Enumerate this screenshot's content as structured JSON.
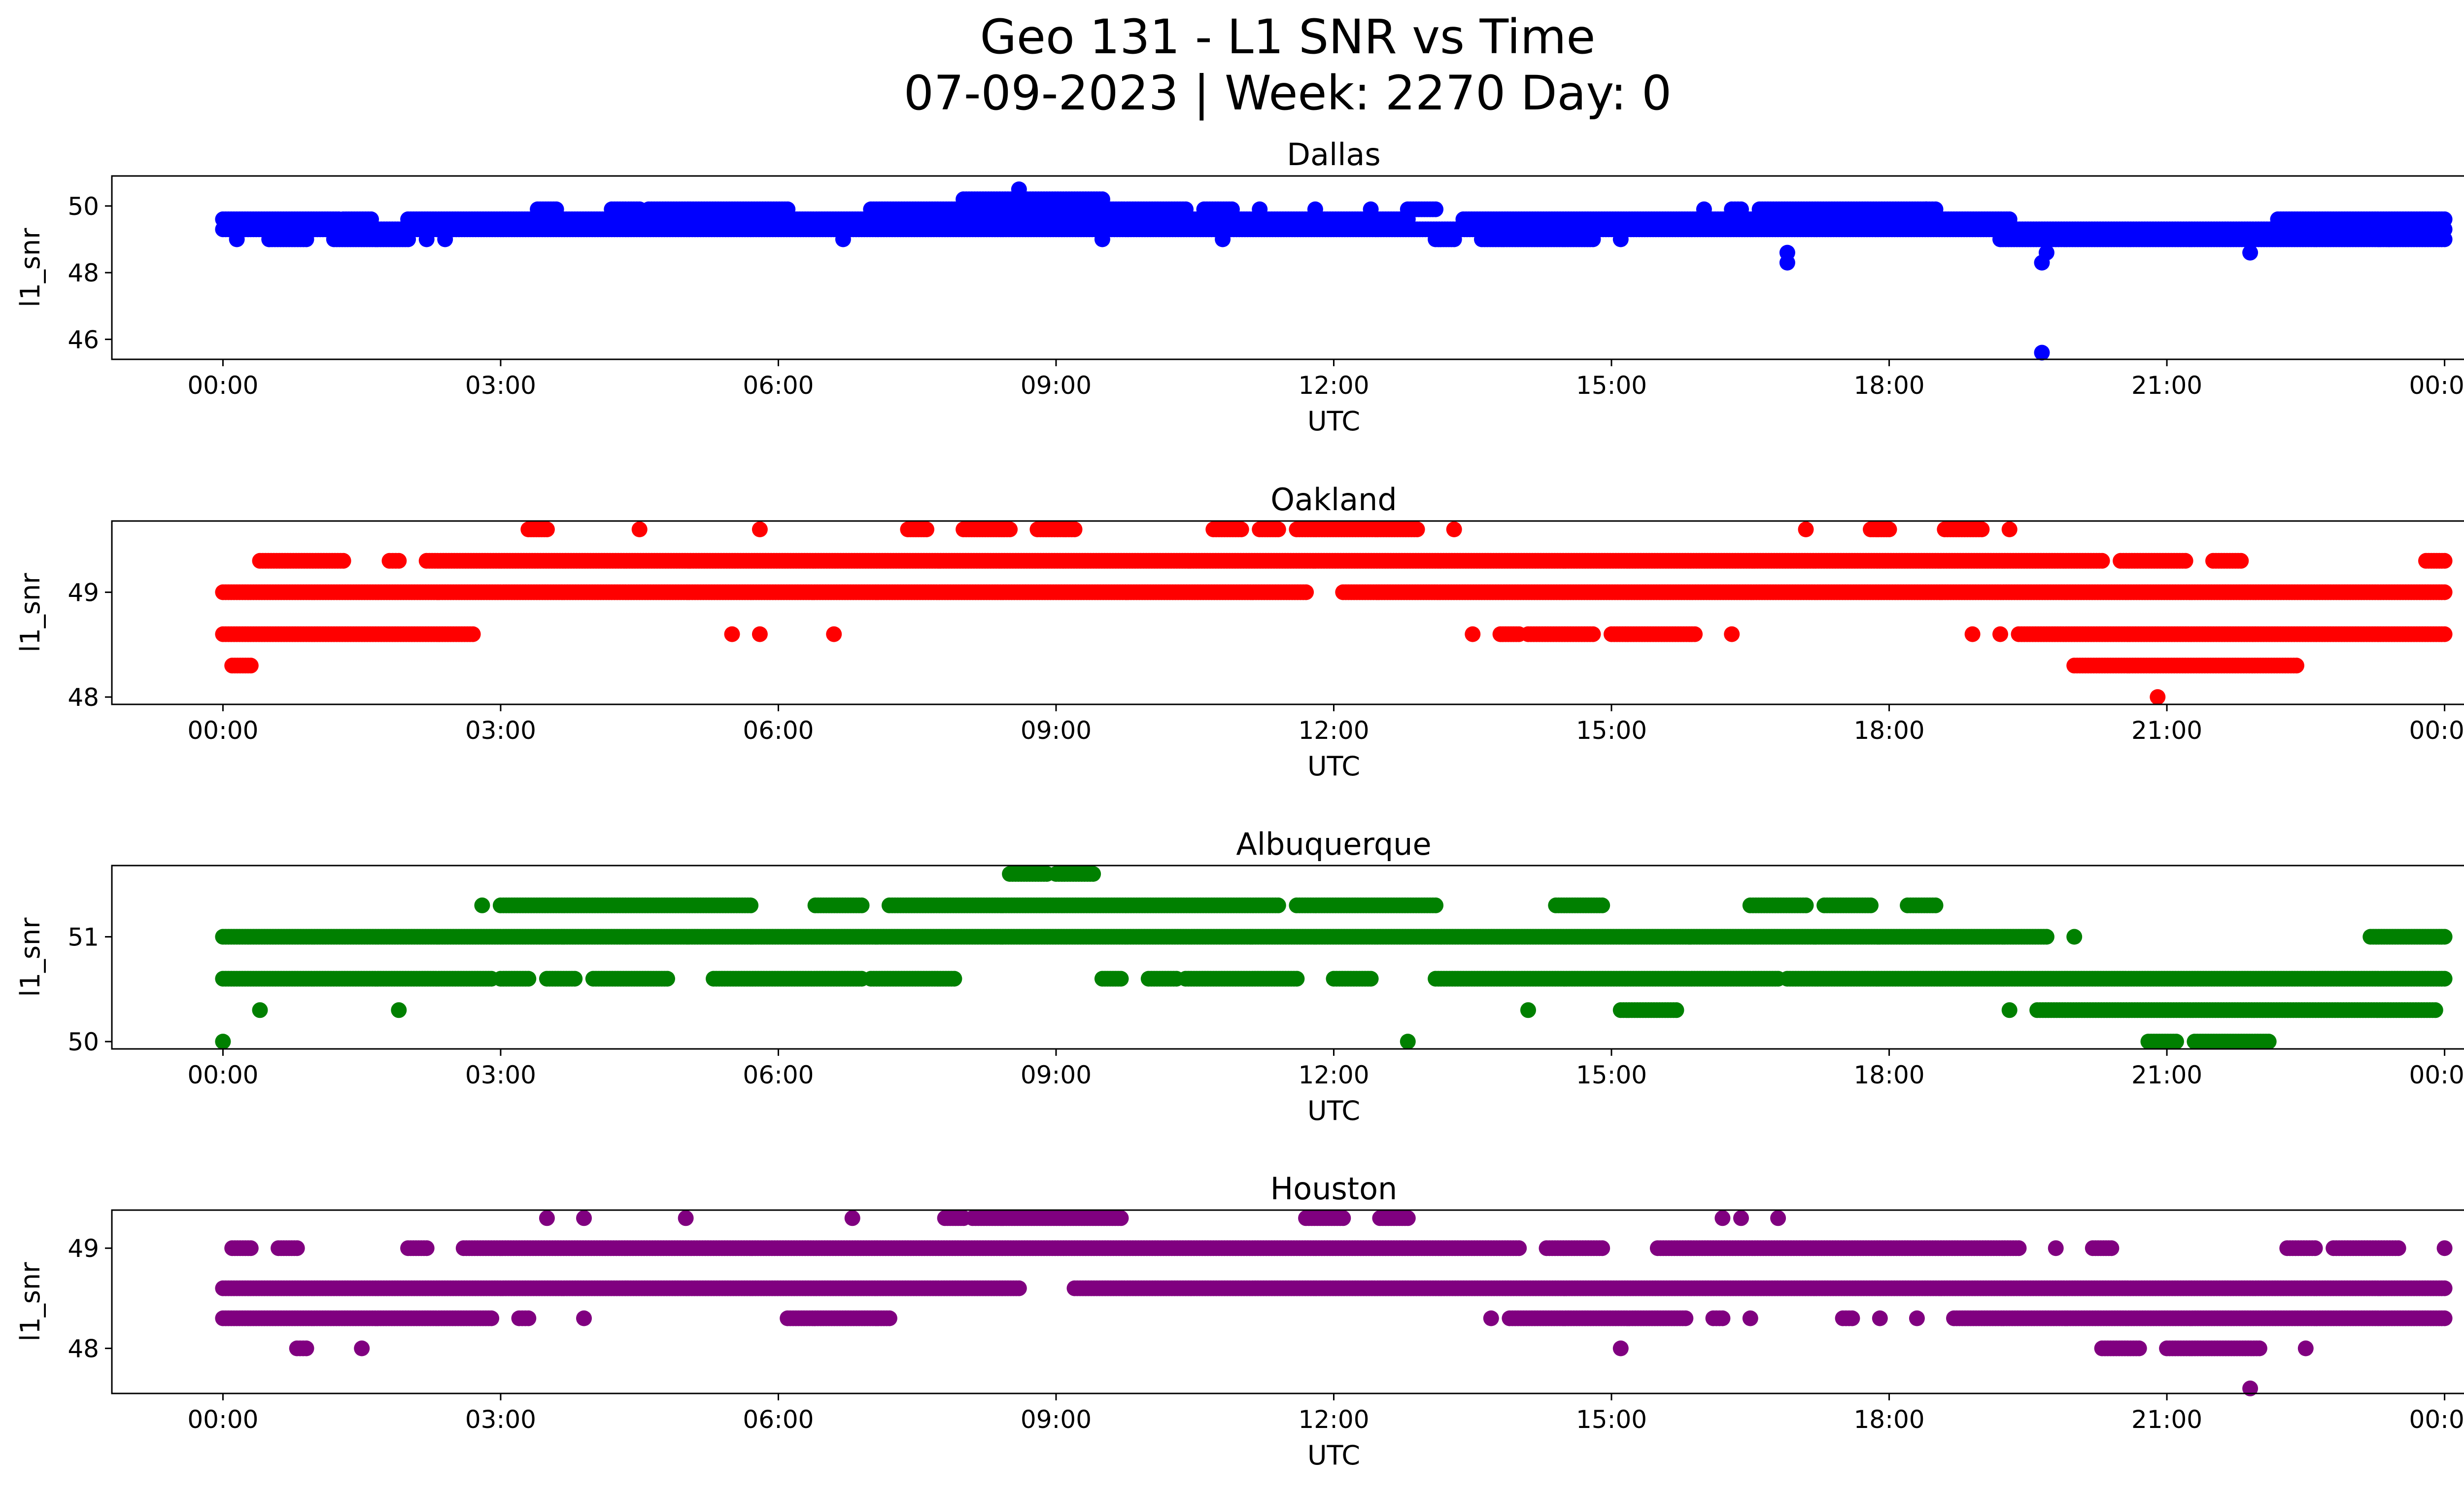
{
  "figure": {
    "title_line1": "Geo 131 - L1 SNR vs Time",
    "title_line2": "07-09-2023 | Week: 2270 Day: 0"
  },
  "chart_data": [
    {
      "type": "scatter",
      "title": "Dallas",
      "xlabel": "UTC",
      "ylabel": "l1_snr",
      "color": "#0000ff",
      "x_ticks": [
        "00:00",
        "03:00",
        "06:00",
        "09:00",
        "12:00",
        "15:00",
        "18:00",
        "21:00",
        "00:00"
      ],
      "xlim_hours": [
        -1.2,
        25.2
      ],
      "ylim": [
        45.4,
        50.9
      ],
      "y_ticks": [
        46,
        48,
        50
      ],
      "y_tick_labels": [
        "46",
        "48",
        "50"
      ],
      "levels": [
        {
          "y": 49.3,
          "runs": [
            [
              0,
              24
            ]
          ]
        },
        {
          "y": 49.6,
          "runs": [
            [
              0,
              1.25
            ],
            [
              1.3,
              1.6
            ],
            [
              2.0,
              12.8
            ],
            [
              13.4,
              16.0
            ],
            [
              16.0,
              17.8
            ],
            [
              17.8,
              19.3
            ],
            [
              22.2,
              24
            ]
          ]
        },
        {
          "y": 49.0,
          "runs": [
            [
              0.15,
              0.15
            ],
            [
              0.5,
              0.5
            ],
            [
              0.5,
              0.9
            ],
            [
              1.2,
              2.0
            ],
            [
              2.2,
              2.2
            ],
            [
              2.4,
              2.4
            ],
            [
              6.7,
              6.7
            ],
            [
              9.5,
              9.5
            ],
            [
              10.8,
              10.8
            ],
            [
              13.1,
              13.3
            ],
            [
              13.6,
              14.8
            ],
            [
              15.1,
              15.1
            ],
            [
              19.2,
              24
            ],
            [
              23.4,
              23.4
            ]
          ]
        },
        {
          "y": 49.9,
          "runs": [
            [
              3.4,
              3.6
            ],
            [
              4.2,
              4.5
            ],
            [
              4.6,
              6.1
            ],
            [
              7.0,
              10.4
            ],
            [
              10.6,
              10.9
            ],
            [
              11.2,
              11.2
            ],
            [
              11.8,
              11.8
            ],
            [
              12.4,
              12.4
            ],
            [
              12.8,
              13.1
            ],
            [
              16.0,
              16.0
            ],
            [
              16.3,
              16.4
            ],
            [
              16.6,
              18.4
            ],
            [
              18.4,
              18.5
            ]
          ]
        },
        {
          "y": 50.2,
          "runs": [
            [
              8.0,
              9.5
            ]
          ]
        },
        {
          "y": 48.6,
          "runs": [
            [
              16.9,
              16.9
            ],
            [
              19.7,
              19.7
            ],
            [
              21.9,
              21.9
            ]
          ]
        }
      ],
      "points": [
        {
          "x": 8.6,
          "y": 50.5
        },
        {
          "x": 16.9,
          "y": 48.3
        },
        {
          "x": 19.65,
          "y": 48.3
        },
        {
          "x": 19.65,
          "y": 45.6
        }
      ]
    },
    {
      "type": "scatter",
      "title": "Oakland",
      "xlabel": "UTC",
      "ylabel": "l1_snr",
      "color": "#ff0000",
      "x_ticks": [
        "00:00",
        "03:00",
        "06:00",
        "09:00",
        "12:00",
        "15:00",
        "18:00",
        "21:00",
        "00:00"
      ],
      "xlim_hours": [
        -1.2,
        25.2
      ],
      "ylim": [
        47.93,
        49.68
      ],
      "y_ticks": [
        48,
        49
      ],
      "y_tick_labels": [
        "48",
        "49"
      ],
      "levels": [
        {
          "y": 49.0,
          "runs": [
            [
              0,
              11.7
            ],
            [
              12.1,
              24
            ]
          ]
        },
        {
          "y": 48.6,
          "runs": [
            [
              0,
              2.7
            ],
            [
              19.4,
              24
            ]
          ]
        },
        {
          "y": 49.3,
          "runs": [
            [
              0.4,
              1.3
            ],
            [
              1.8,
              1.9
            ],
            [
              2.2,
              20.3
            ],
            [
              20.5,
              21.2
            ],
            [
              21.5,
              21.8
            ],
            [
              23.8,
              24
            ]
          ]
        },
        {
          "y": 49.6,
          "runs": [
            [
              3.3,
              3.5
            ],
            [
              4.5,
              4.5
            ],
            [
              5.8,
              5.8
            ],
            [
              7.4,
              7.6
            ],
            [
              8.0,
              8.5
            ],
            [
              8.8,
              9.2
            ],
            [
              10.7,
              11.0
            ],
            [
              11.2,
              11.4
            ],
            [
              11.6,
              12.9
            ],
            [
              13.3,
              13.3
            ],
            [
              17.1,
              17.1
            ],
            [
              17.8,
              18.0
            ],
            [
              18.6,
              19.0
            ],
            [
              19.3,
              19.3
            ]
          ]
        },
        {
          "y": 48.3,
          "runs": [
            [
              0.1,
              0.3
            ],
            [
              20.0,
              22.4
            ]
          ]
        },
        {
          "y": 48.6,
          "runs": [
            [
              5.5,
              5.5
            ],
            [
              5.8,
              5.8
            ],
            [
              6.6,
              6.6
            ],
            [
              13.5,
              13.5
            ],
            [
              13.8,
              14.0
            ],
            [
              14.1,
              14.8
            ],
            [
              15.0,
              15.9
            ],
            [
              16.3,
              16.3
            ],
            [
              18.9,
              18.9
            ],
            [
              19.2,
              19.2
            ]
          ]
        }
      ],
      "points": [
        {
          "x": 20.9,
          "y": 48.0
        }
      ]
    },
    {
      "type": "scatter",
      "title": "Albuquerque",
      "xlabel": "UTC",
      "ylabel": "l1_snr",
      "color": "#008000",
      "x_ticks": [
        "00:00",
        "03:00",
        "06:00",
        "09:00",
        "12:00",
        "15:00",
        "18:00",
        "21:00",
        "00:00"
      ],
      "xlim_hours": [
        -1.2,
        25.2
      ],
      "ylim": [
        49.93,
        51.68
      ],
      "y_ticks": [
        50,
        51
      ],
      "y_tick_labels": [
        "50",
        "51"
      ],
      "levels": [
        {
          "y": 51.0,
          "runs": [
            [
              0,
              19.7
            ],
            [
              20.0,
              20.0
            ],
            [
              23.2,
              24
            ]
          ]
        },
        {
          "y": 50.6,
          "runs": [
            [
              0,
              2.9
            ],
            [
              3.0,
              3.3
            ],
            [
              3.5,
              3.8
            ],
            [
              4.0,
              4.8
            ],
            [
              5.3,
              6.9
            ],
            [
              7.0,
              7.9
            ],
            [
              9.5,
              9.7
            ],
            [
              10.0,
              10.3
            ],
            [
              10.4,
              11.6
            ],
            [
              12.0,
              12.4
            ],
            [
              13.1,
              16.8
            ],
            [
              16.9,
              24
            ]
          ]
        },
        {
          "y": 51.3,
          "runs": [
            [
              2.8,
              2.8
            ],
            [
              3.0,
              5.7
            ],
            [
              6.4,
              6.9
            ],
            [
              7.2,
              11.4
            ],
            [
              11.6,
              13.1
            ],
            [
              14.4,
              14.9
            ],
            [
              16.5,
              17.1
            ],
            [
              17.3,
              17.8
            ],
            [
              18.2,
              18.5
            ]
          ]
        },
        {
          "y": 51.6,
          "runs": [
            [
              8.5,
              8.9
            ],
            [
              9.0,
              9.4
            ]
          ]
        },
        {
          "y": 50.3,
          "runs": [
            [
              0.4,
              0.4
            ],
            [
              1.9,
              1.9
            ],
            [
              14.1,
              14.1
            ],
            [
              15.1,
              15.7
            ],
            [
              19.3,
              19.3
            ],
            [
              19.6,
              23.9
            ]
          ]
        },
        {
          "y": 50.0,
          "runs": [
            [
              20.8,
              21.1
            ],
            [
              21.3,
              22.1
            ]
          ]
        }
      ],
      "points": [
        {
          "x": 0.0,
          "y": 50.0
        },
        {
          "x": 12.8,
          "y": 50.0
        }
      ]
    },
    {
      "type": "scatter",
      "title": "Houston",
      "xlabel": "UTC",
      "ylabel": "l1_snr",
      "color": "#800080",
      "x_ticks": [
        "00:00",
        "03:00",
        "06:00",
        "09:00",
        "12:00",
        "15:00",
        "18:00",
        "21:00",
        "00:00"
      ],
      "xlim_hours": [
        -1.2,
        25.2
      ],
      "ylim": [
        47.55,
        49.38
      ],
      "y_ticks": [
        48,
        49
      ],
      "y_tick_labels": [
        "48",
        "49"
      ],
      "levels": [
        {
          "y": 48.6,
          "runs": [
            [
              0,
              8.6
            ],
            [
              9.2,
              24
            ]
          ]
        },
        {
          "y": 48.3,
          "runs": [
            [
              0,
              2.9
            ],
            [
              3.2,
              3.3
            ],
            [
              3.9,
              3.9
            ],
            [
              6.1,
              7.2
            ],
            [
              13.7,
              13.7
            ],
            [
              13.9,
              15.8
            ],
            [
              16.1,
              16.2
            ],
            [
              16.5,
              16.5
            ],
            [
              17.5,
              17.6
            ],
            [
              17.9,
              17.9
            ],
            [
              18.3,
              18.3
            ],
            [
              18.7,
              24
            ]
          ]
        },
        {
          "y": 49.0,
          "runs": [
            [
              0.1,
              0.3
            ],
            [
              0.6,
              0.8
            ],
            [
              2.0,
              2.2
            ],
            [
              2.6,
              14.0
            ],
            [
              14.3,
              14.9
            ],
            [
              15.5,
              19.4
            ],
            [
              19.8,
              19.8
            ],
            [
              20.2,
              20.4
            ],
            [
              22.3,
              22.6
            ],
            [
              22.8,
              23.5
            ],
            [
              24.0,
              24.0
            ]
          ]
        },
        {
          "y": 49.3,
          "runs": [
            [
              3.5,
              3.5
            ],
            [
              3.9,
              3.9
            ],
            [
              5.0,
              5.0
            ],
            [
              6.8,
              6.8
            ],
            [
              7.8,
              8.0
            ],
            [
              8.1,
              9.7
            ],
            [
              11.7,
              12.1
            ],
            [
              12.5,
              12.8
            ],
            [
              16.2,
              16.2
            ],
            [
              16.4,
              16.4
            ],
            [
              16.8,
              16.8
            ]
          ]
        },
        {
          "y": 48.0,
          "runs": [
            [
              0.8,
              0.9
            ],
            [
              1.5,
              1.5
            ],
            [
              15.1,
              15.1
            ],
            [
              20.3,
              20.7
            ],
            [
              21.0,
              22.0
            ],
            [
              22.5,
              22.5
            ]
          ]
        }
      ],
      "points": [
        {
          "x": 21.9,
          "y": 47.6
        }
      ]
    }
  ]
}
